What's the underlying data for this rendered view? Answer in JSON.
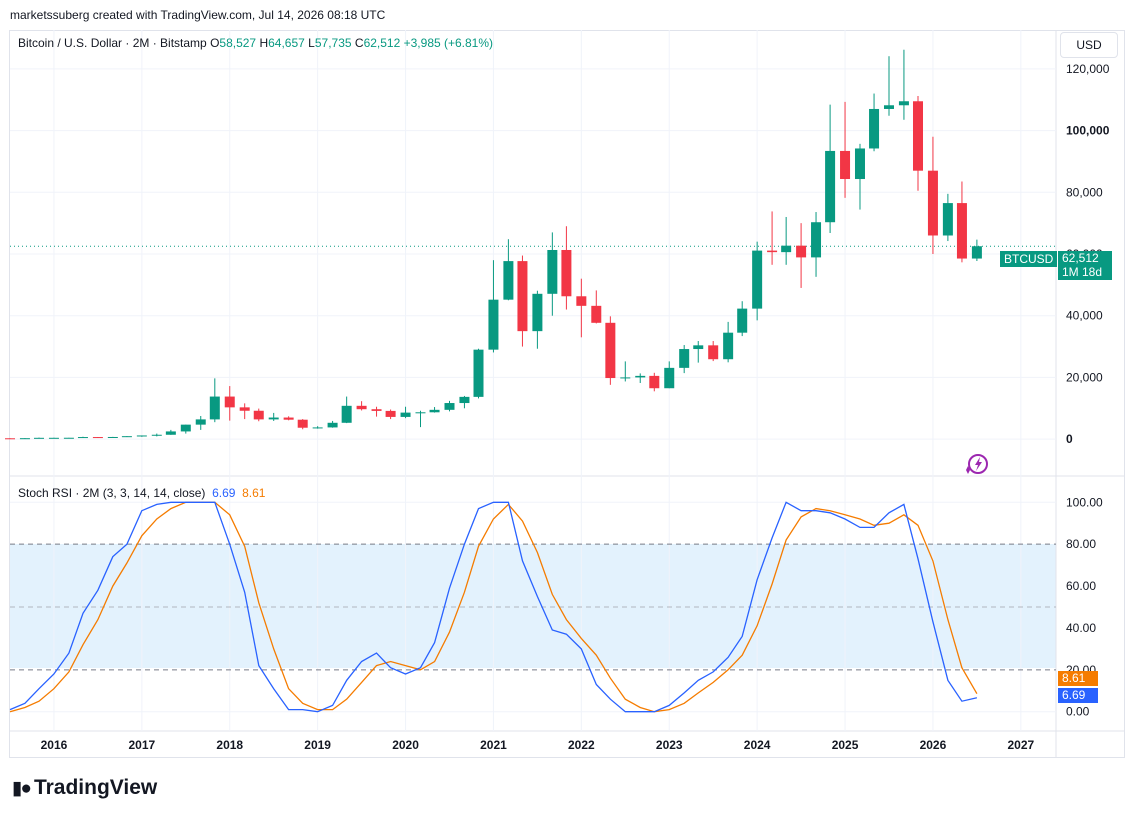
{
  "attribution": "marketssuberg created with TradingView.com, Jul 14, 2026 08:18 UTC",
  "legend": {
    "title": "Bitcoin / U.S. Dollar · 2M · Bitstamp",
    "o_label": "O",
    "o_value": "58,527",
    "h_label": "H",
    "h_value": "64,657",
    "l_label": "L",
    "l_value": "57,735",
    "c_label": "C",
    "c_value": "62,512",
    "change": "+3,985 (+6.81%)"
  },
  "currency_button": "USD",
  "last_price": {
    "symbol": "BTCUSD",
    "price": "62,512",
    "countdown": "1M 18d"
  },
  "rsi_legend": {
    "title": "Stoch RSI · 2M (3, 3, 14, 14, close)",
    "k_value": "6.69",
    "d_value": "8.61"
  },
  "brand": "TradingView",
  "colors": {
    "up": "#089981",
    "down": "#f23645",
    "k_line": "#2962ff",
    "d_line": "#f57c00",
    "band": "#e3f2fd"
  },
  "chart_data": [
    {
      "type": "candlestick",
      "title": "Bitcoin / U.S. Dollar · 2M · Bitstamp",
      "x_ticks": [
        "2016",
        "2017",
        "2018",
        "2019",
        "2020",
        "2021",
        "2022",
        "2023",
        "2024",
        "2025",
        "2026",
        "2027"
      ],
      "y_ticks": [
        0,
        20000,
        40000,
        60000,
        80000,
        100000,
        120000
      ],
      "y_tick_labels": [
        "0",
        "20,000",
        "40,000",
        "60,000",
        "80,000",
        "100,000",
        "120,000"
      ],
      "ylim": [
        -10000,
        130000
      ],
      "xlim": [
        2015.5,
        2027.4
      ],
      "last_price": 62512,
      "candles": [
        {
          "t": 2015.5,
          "o": 280,
          "h": 315,
          "l": 260,
          "c": 230
        },
        {
          "t": 2015.67,
          "o": 230,
          "h": 330,
          "l": 220,
          "c": 310
        },
        {
          "t": 2015.83,
          "o": 310,
          "h": 500,
          "l": 300,
          "c": 430
        },
        {
          "t": 2016.0,
          "o": 430,
          "h": 460,
          "l": 350,
          "c": 435
        },
        {
          "t": 2016.17,
          "o": 435,
          "h": 470,
          "l": 410,
          "c": 450
        },
        {
          "t": 2016.33,
          "o": 450,
          "h": 780,
          "l": 440,
          "c": 675
        },
        {
          "t": 2016.5,
          "o": 675,
          "h": 700,
          "l": 520,
          "c": 575
        },
        {
          "t": 2016.67,
          "o": 575,
          "h": 740,
          "l": 560,
          "c": 700
        },
        {
          "t": 2016.83,
          "o": 700,
          "h": 980,
          "l": 690,
          "c": 960
        },
        {
          "t": 2017.0,
          "o": 960,
          "h": 1200,
          "l": 750,
          "c": 1190
        },
        {
          "t": 2017.17,
          "o": 1190,
          "h": 1800,
          "l": 890,
          "c": 1420
        },
        {
          "t": 2017.33,
          "o": 1420,
          "h": 3000,
          "l": 1400,
          "c": 2500
        },
        {
          "t": 2017.5,
          "o": 2500,
          "h": 4700,
          "l": 1800,
          "c": 4700
        },
        {
          "t": 2017.67,
          "o": 4700,
          "h": 7500,
          "l": 3000,
          "c": 6400
        },
        {
          "t": 2017.83,
          "o": 6400,
          "h": 19700,
          "l": 5500,
          "c": 13800
        },
        {
          "t": 2018.0,
          "o": 13800,
          "h": 17200,
          "l": 6000,
          "c": 10300
        },
        {
          "t": 2018.17,
          "o": 10300,
          "h": 11600,
          "l": 6500,
          "c": 9200
        },
        {
          "t": 2018.33,
          "o": 9200,
          "h": 9900,
          "l": 5800,
          "c": 6400
        },
        {
          "t": 2018.5,
          "o": 6400,
          "h": 8500,
          "l": 5900,
          "c": 7000
        },
        {
          "t": 2018.67,
          "o": 7000,
          "h": 7400,
          "l": 6100,
          "c": 6300
        },
        {
          "t": 2018.83,
          "o": 6300,
          "h": 6500,
          "l": 3200,
          "c": 3700
        },
        {
          "t": 2019.0,
          "o": 3700,
          "h": 4200,
          "l": 3400,
          "c": 3800
        },
        {
          "t": 2019.17,
          "o": 3800,
          "h": 5900,
          "l": 3700,
          "c": 5300
        },
        {
          "t": 2019.33,
          "o": 5300,
          "h": 13800,
          "l": 5200,
          "c": 10800
        },
        {
          "t": 2019.5,
          "o": 10800,
          "h": 12300,
          "l": 9300,
          "c": 9700
        },
        {
          "t": 2019.67,
          "o": 9700,
          "h": 10500,
          "l": 7300,
          "c": 9150
        },
        {
          "t": 2019.83,
          "o": 9150,
          "h": 9600,
          "l": 6500,
          "c": 7200
        },
        {
          "t": 2020.0,
          "o": 7200,
          "h": 10500,
          "l": 6800,
          "c": 8600
        },
        {
          "t": 2020.17,
          "o": 8600,
          "h": 9200,
          "l": 3900,
          "c": 8700
        },
        {
          "t": 2020.33,
          "o": 8700,
          "h": 10400,
          "l": 8600,
          "c": 9500
        },
        {
          "t": 2020.5,
          "o": 9500,
          "h": 12400,
          "l": 9000,
          "c": 11700
        },
        {
          "t": 2020.67,
          "o": 11700,
          "h": 14000,
          "l": 10000,
          "c": 13700
        },
        {
          "t": 2020.83,
          "o": 13700,
          "h": 29300,
          "l": 13200,
          "c": 29000
        },
        {
          "t": 2021.0,
          "o": 29000,
          "h": 58000,
          "l": 28100,
          "c": 45200
        },
        {
          "t": 2021.17,
          "o": 45200,
          "h": 64800,
          "l": 45000,
          "c": 57700
        },
        {
          "t": 2021.33,
          "o": 57700,
          "h": 59500,
          "l": 30000,
          "c": 35000
        },
        {
          "t": 2021.5,
          "o": 35000,
          "h": 48100,
          "l": 29300,
          "c": 47100
        },
        {
          "t": 2021.67,
          "o": 47100,
          "h": 67000,
          "l": 40000,
          "c": 61300
        },
        {
          "t": 2021.83,
          "o": 61300,
          "h": 69000,
          "l": 42000,
          "c": 46300
        },
        {
          "t": 2022.0,
          "o": 46300,
          "h": 52000,
          "l": 33000,
          "c": 43200
        },
        {
          "t": 2022.17,
          "o": 43200,
          "h": 48200,
          "l": 37500,
          "c": 37700
        },
        {
          "t": 2022.33,
          "o": 37700,
          "h": 39800,
          "l": 17600,
          "c": 19800
        },
        {
          "t": 2022.5,
          "o": 19800,
          "h": 25200,
          "l": 18700,
          "c": 20000
        },
        {
          "t": 2022.67,
          "o": 20000,
          "h": 21300,
          "l": 18200,
          "c": 20500
        },
        {
          "t": 2022.83,
          "o": 20500,
          "h": 21500,
          "l": 15500,
          "c": 16500
        },
        {
          "t": 2023.0,
          "o": 16500,
          "h": 25200,
          "l": 16500,
          "c": 23100
        },
        {
          "t": 2023.17,
          "o": 23100,
          "h": 30500,
          "l": 21400,
          "c": 29200
        },
        {
          "t": 2023.33,
          "o": 29200,
          "h": 31800,
          "l": 24800,
          "c": 30400
        },
        {
          "t": 2023.5,
          "o": 30400,
          "h": 31800,
          "l": 25300,
          "c": 25900
        },
        {
          "t": 2023.67,
          "o": 25900,
          "h": 38000,
          "l": 24900,
          "c": 34500
        },
        {
          "t": 2023.83,
          "o": 34500,
          "h": 44700,
          "l": 33400,
          "c": 42300
        },
        {
          "t": 2024.0,
          "o": 42300,
          "h": 64000,
          "l": 38500,
          "c": 61100
        },
        {
          "t": 2024.17,
          "o": 61100,
          "h": 73800,
          "l": 56500,
          "c": 60600
        },
        {
          "t": 2024.33,
          "o": 60600,
          "h": 72000,
          "l": 56500,
          "c": 62700
        },
        {
          "t": 2024.5,
          "o": 62700,
          "h": 70000,
          "l": 49000,
          "c": 58900
        },
        {
          "t": 2024.67,
          "o": 58900,
          "h": 73600,
          "l": 52600,
          "c": 70300
        },
        {
          "t": 2024.83,
          "o": 70300,
          "h": 108400,
          "l": 66800,
          "c": 93400
        },
        {
          "t": 2025.0,
          "o": 93400,
          "h": 109300,
          "l": 78200,
          "c": 84300
        },
        {
          "t": 2025.17,
          "o": 84300,
          "h": 95700,
          "l": 74400,
          "c": 94200
        },
        {
          "t": 2025.33,
          "o": 94200,
          "h": 112000,
          "l": 93300,
          "c": 107000
        },
        {
          "t": 2025.5,
          "o": 107000,
          "h": 124100,
          "l": 104800,
          "c": 108200
        },
        {
          "t": 2025.67,
          "o": 108200,
          "h": 126200,
          "l": 103500,
          "c": 109500
        },
        {
          "t": 2025.83,
          "o": 109500,
          "h": 111200,
          "l": 80500,
          "c": 87000
        },
        {
          "t": 2026.0,
          "o": 87000,
          "h": 98000,
          "l": 60000,
          "c": 66000
        },
        {
          "t": 2026.17,
          "o": 66000,
          "h": 79500,
          "l": 64200,
          "c": 76500
        },
        {
          "t": 2026.33,
          "o": 76500,
          "h": 83500,
          "l": 57300,
          "c": 58527
        },
        {
          "t": 2026.5,
          "o": 58527,
          "h": 64657,
          "l": 57735,
          "c": 62512
        }
      ]
    },
    {
      "type": "line",
      "title": "Stoch RSI · 2M (3, 3, 14, 14, close)",
      "y_ticks": [
        0,
        20,
        40,
        60,
        80,
        100
      ],
      "y_tick_labels": [
        "0.00",
        "20.00",
        "40.00",
        "60.00",
        "80.00",
        "100.00"
      ],
      "ylim": [
        -3,
        103
      ],
      "band": [
        20,
        80
      ],
      "midline": 50,
      "x": [
        2015.5,
        2015.67,
        2015.83,
        2016.0,
        2016.17,
        2016.33,
        2016.5,
        2016.67,
        2016.83,
        2017.0,
        2017.17,
        2017.33,
        2017.5,
        2017.67,
        2017.83,
        2018.0,
        2018.17,
        2018.33,
        2018.5,
        2018.67,
        2018.83,
        2019.0,
        2019.17,
        2019.33,
        2019.5,
        2019.67,
        2019.83,
        2020.0,
        2020.17,
        2020.33,
        2020.5,
        2020.67,
        2020.83,
        2021.0,
        2021.17,
        2021.33,
        2021.5,
        2021.67,
        2021.83,
        2022.0,
        2022.17,
        2022.33,
        2022.5,
        2022.67,
        2022.83,
        2023.0,
        2023.17,
        2023.33,
        2023.5,
        2023.67,
        2023.83,
        2024.0,
        2024.17,
        2024.33,
        2024.5,
        2024.67,
        2024.83,
        2025.0,
        2025.17,
        2025.33,
        2025.5,
        2025.67,
        2025.83,
        2026.0,
        2026.17,
        2026.33,
        2026.5
      ],
      "series": [
        {
          "name": "K",
          "values": [
            1,
            4,
            11,
            18,
            28,
            47,
            58,
            74,
            80,
            96,
            99,
            100,
            100,
            100,
            100,
            80,
            57,
            22,
            11,
            1,
            1,
            0,
            3,
            15,
            24,
            28,
            21,
            18,
            21,
            33,
            59,
            80,
            97,
            100,
            100,
            72,
            55,
            39,
            37,
            30,
            13,
            6,
            0,
            0,
            0,
            3,
            9,
            15,
            19,
            26,
            36,
            63,
            83,
            100,
            96,
            96,
            95,
            92,
            88,
            88,
            95,
            99,
            73,
            43,
            15,
            5,
            6.69
          ]
        },
        {
          "name": "D",
          "values": [
            0,
            2,
            5,
            11,
            19,
            32,
            44,
            60,
            71,
            84,
            92,
            97,
            100,
            100,
            100,
            94,
            79,
            52,
            30,
            11,
            4,
            1,
            1,
            6,
            14,
            22,
            24,
            22,
            20,
            24,
            38,
            57,
            79,
            92,
            99,
            91,
            76,
            56,
            44,
            35,
            27,
            16,
            6,
            2,
            0,
            1,
            4,
            9,
            14,
            20,
            27,
            41,
            61,
            82,
            93,
            97,
            96,
            94,
            92,
            89,
            90,
            94,
            89,
            72,
            44,
            21,
            8.61
          ]
        }
      ]
    }
  ]
}
